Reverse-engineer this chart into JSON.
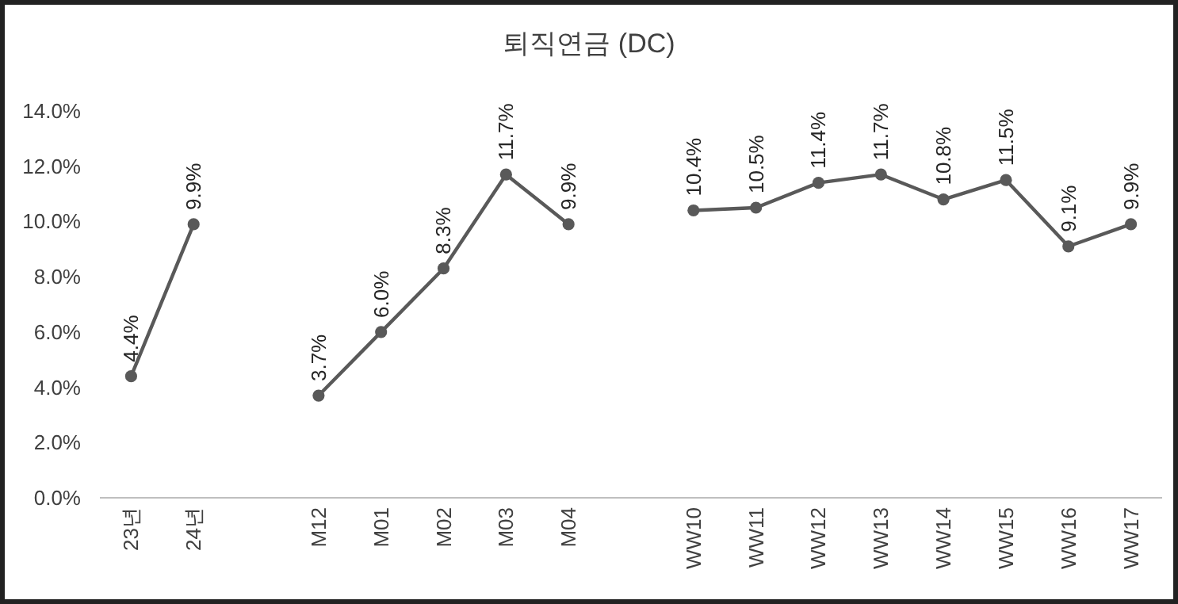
{
  "chart_data": {
    "type": "line",
    "title": "퇴직연금 (DC)",
    "categories": [
      "23년",
      "24년",
      null,
      "M12",
      "M01",
      "M02",
      "M03",
      "M04",
      null,
      "WW10",
      "WW11",
      "WW12",
      "WW13",
      "WW14",
      "WW15",
      "WW16",
      "WW17"
    ],
    "series": [
      {
        "color": "#595959",
        "values": [
          4.4,
          9.9,
          null,
          3.7,
          6.0,
          8.3,
          11.7,
          9.9,
          null,
          10.4,
          10.5,
          11.4,
          11.7,
          10.8,
          11.5,
          9.1,
          9.9
        ],
        "value_labels": [
          "4.4%",
          "9.9%",
          null,
          "3.7%",
          "6.0%",
          "8.3%",
          "11.7%",
          "9.9%",
          null,
          "10.4%",
          "10.5%",
          "11.4%",
          "11.7%",
          "10.8%",
          "11.5%",
          "9.1%",
          "9.9%"
        ]
      }
    ],
    "ylim": [
      0,
      14
    ],
    "yticks": [
      {
        "value": 0,
        "label": "0.0%"
      },
      {
        "value": 2,
        "label": "2.0%"
      },
      {
        "value": 4,
        "label": "4.0%"
      },
      {
        "value": 6,
        "label": "6.0%"
      },
      {
        "value": 8,
        "label": "8.0%"
      },
      {
        "value": 10,
        "label": "10.0%"
      },
      {
        "value": 12,
        "label": "12.0%"
      },
      {
        "value": 14,
        "label": "14.0%"
      }
    ],
    "marker": "circle",
    "line_style": "solid",
    "grid": false
  }
}
